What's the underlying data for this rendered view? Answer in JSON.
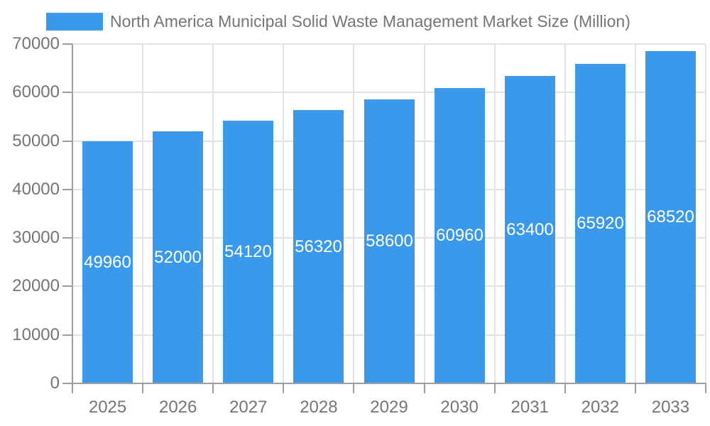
{
  "legend": {
    "position": "top-left",
    "items": [
      {
        "label": "North America Municipal Solid Waste Management Market Size (Million)",
        "swatch_color": "#3B99EC"
      }
    ]
  },
  "chart_data": {
    "type": "bar",
    "title": "North America Municipal Solid Waste Management Market Size (Million)",
    "series_name": "North America Municipal Solid Waste Management Market Size (Million)",
    "categories": [
      "2025",
      "2026",
      "2027",
      "2028",
      "2029",
      "2030",
      "2031",
      "2032",
      "2033"
    ],
    "values": [
      49960,
      52000,
      54120,
      56320,
      58600,
      60960,
      63400,
      65920,
      68520
    ],
    "xlabel": "",
    "ylabel": "",
    "ylim": [
      0,
      70000
    ],
    "yticks": [
      0,
      10000,
      20000,
      30000,
      40000,
      50000,
      60000,
      70000
    ],
    "grid": "horizontal and vertical gridlines",
    "legend_position": "top-left",
    "value_label_position": "inside-center",
    "colors": {
      "bar": "#3B99EC",
      "grid_line": "#E3E3E3",
      "axis_line": "#9E9E9E",
      "tick_text": "#757575",
      "value_label_text": "#FFFFFF",
      "background": "#FFFFFF"
    }
  }
}
